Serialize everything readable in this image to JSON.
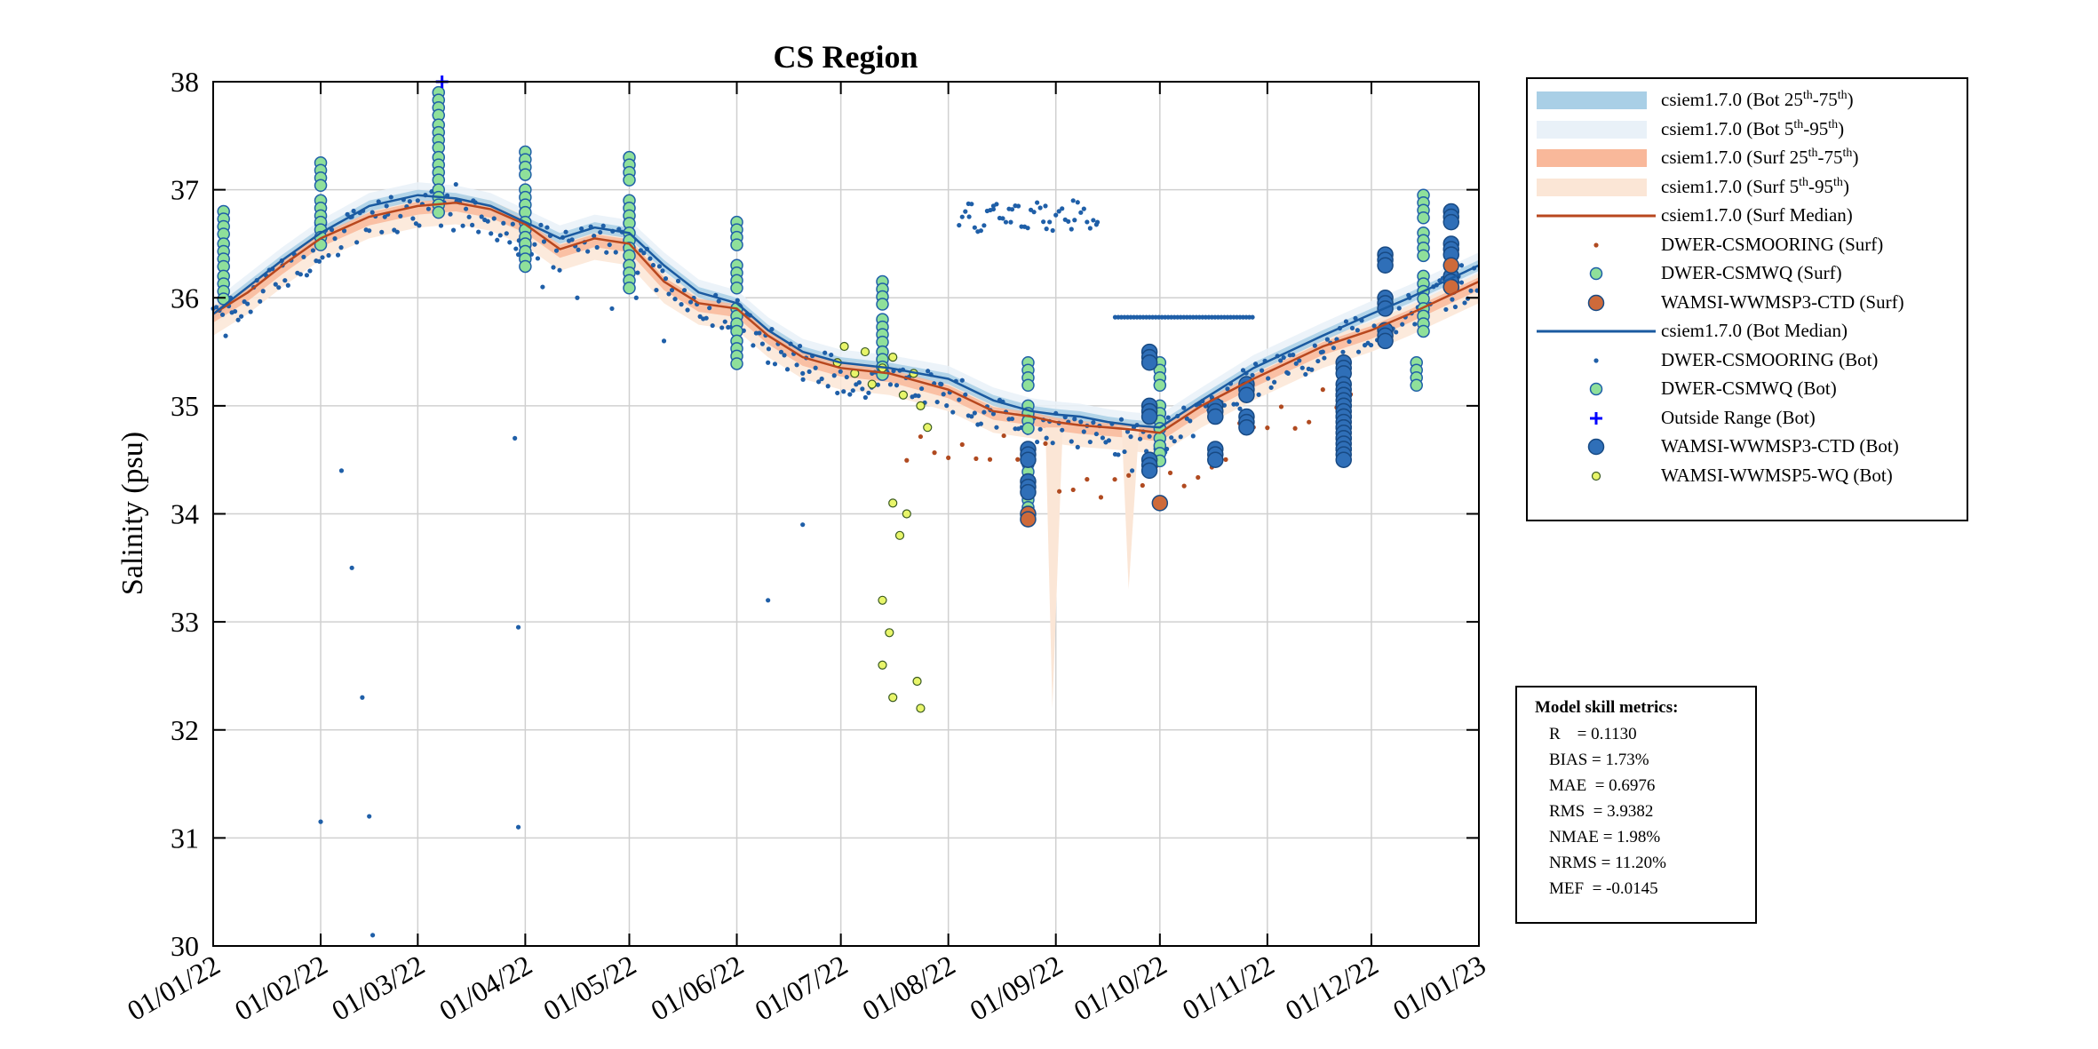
{
  "chart_data": {
    "type": "scatter",
    "title": "CS Region",
    "xlabel": "",
    "ylabel": "Salinity (psu)",
    "ylim": [
      30,
      38
    ],
    "yticks": [
      30,
      31,
      32,
      33,
      34,
      35,
      36,
      37,
      38
    ],
    "xlim_days": [
      0,
      365
    ],
    "x_tick_labels": [
      "01/01/22",
      "01/02/22",
      "01/03/22",
      "01/04/22",
      "01/05/22",
      "01/06/22",
      "01/07/22",
      "01/08/22",
      "01/09/22",
      "01/10/22",
      "01/11/22",
      "01/12/22",
      "01/01/23"
    ],
    "x_tick_days": [
      0,
      31,
      59,
      90,
      120,
      151,
      181,
      212,
      243,
      273,
      304,
      334,
      365
    ],
    "grid": true,
    "legend_position": "outside-right",
    "colors": {
      "bot_band_inner": "#a9cfe6",
      "bot_band_outer": "#e9f1f8",
      "surf_band_inner": "#f9b89a",
      "surf_band_outer": "#fbe6d6",
      "surf_median": "#b8471e",
      "bot_median": "#1a5aa0",
      "mooring_bot": "#1f5fa8",
      "mooring_surf": "#b04a20",
      "csmwq_fill": "#8fe09a",
      "csmwq_edge": "#1f5fa8",
      "ctd_bot_fill": "#2f6fb8",
      "ctd_bot_edge": "#184a84",
      "ctd_surf_fill": "#ce6a3a",
      "p5_fill": "#e8f56a",
      "p5_edge": "#3a5a20",
      "outside": "#0000ff"
    },
    "series": [
      {
        "name": "csiem1.7.0 (Surf Median)",
        "type": "line",
        "x": [
          0,
          10,
          20,
          31,
          45,
          59,
          70,
          80,
          90,
          100,
          110,
          120,
          130,
          140,
          151,
          160,
          170,
          181,
          195,
          212,
          225,
          236,
          243,
          250,
          258,
          265,
          273,
          285,
          300,
          320,
          334,
          345,
          355,
          365
        ],
        "y": [
          35.85,
          36.05,
          36.3,
          36.55,
          36.75,
          36.85,
          36.88,
          36.82,
          36.68,
          36.45,
          36.55,
          36.5,
          36.15,
          35.95,
          35.9,
          35.65,
          35.45,
          35.35,
          35.3,
          35.15,
          34.95,
          34.9,
          34.85,
          34.82,
          34.8,
          34.78,
          34.75,
          35.0,
          35.25,
          35.55,
          35.7,
          35.85,
          36.0,
          36.15
        ]
      },
      {
        "name": "csiem1.7.0 (Bot Median)",
        "type": "line",
        "x": [
          0,
          10,
          20,
          31,
          45,
          59,
          70,
          80,
          90,
          100,
          110,
          120,
          130,
          140,
          151,
          160,
          170,
          181,
          195,
          212,
          225,
          236,
          243,
          250,
          258,
          265,
          273,
          285,
          300,
          320,
          334,
          345,
          355,
          365
        ],
        "y": [
          35.85,
          36.1,
          36.35,
          36.6,
          36.85,
          36.95,
          36.92,
          36.85,
          36.7,
          36.55,
          36.65,
          36.6,
          36.3,
          36.05,
          35.95,
          35.7,
          35.5,
          35.4,
          35.35,
          35.25,
          35.05,
          34.95,
          34.92,
          34.9,
          34.85,
          34.82,
          34.8,
          35.05,
          35.35,
          35.65,
          35.85,
          36.0,
          36.15,
          36.3
        ]
      },
      {
        "name": "DWER-CSMWQ (Bot)",
        "type": "scatter",
        "points": [
          [
            3,
            36.8
          ],
          [
            3,
            36.5
          ],
          [
            3,
            36.2
          ],
          [
            31,
            37.25
          ],
          [
            31,
            36.9
          ],
          [
            31,
            36.7
          ],
          [
            65,
            37.9
          ],
          [
            65,
            37.6
          ],
          [
            65,
            37.3
          ],
          [
            65,
            37.0
          ],
          [
            90,
            37.35
          ],
          [
            90,
            37.0
          ],
          [
            90,
            36.7
          ],
          [
            90,
            36.5
          ],
          [
            120,
            37.3
          ],
          [
            120,
            36.9
          ],
          [
            120,
            36.6
          ],
          [
            120,
            36.3
          ],
          [
            151,
            36.7
          ],
          [
            151,
            36.3
          ],
          [
            151,
            35.9
          ],
          [
            151,
            35.6
          ],
          [
            193,
            36.15
          ],
          [
            193,
            35.8
          ],
          [
            193,
            35.5
          ],
          [
            235,
            35.4
          ],
          [
            235,
            35.0
          ],
          [
            235,
            34.6
          ],
          [
            235,
            34.2
          ],
          [
            273,
            35.4
          ],
          [
            273,
            35.0
          ],
          [
            273,
            34.7
          ],
          [
            349,
            36.95
          ],
          [
            349,
            36.6
          ],
          [
            349,
            36.2
          ],
          [
            349,
            35.9
          ],
          [
            347,
            35.4
          ]
        ]
      },
      {
        "name": "WAMSI-WWMSP3-CTD (Bot)",
        "type": "scatter",
        "points": [
          [
            235,
            34.6
          ],
          [
            235,
            34.3
          ],
          [
            270,
            35.5
          ],
          [
            270,
            35.0
          ],
          [
            270,
            34.5
          ],
          [
            289,
            35.0
          ],
          [
            289,
            34.6
          ],
          [
            298,
            35.2
          ],
          [
            298,
            34.9
          ],
          [
            326,
            35.4
          ],
          [
            326,
            35.2
          ],
          [
            326,
            35.1
          ],
          [
            326,
            35.0
          ],
          [
            326,
            34.9
          ],
          [
            326,
            34.8
          ],
          [
            326,
            34.7
          ],
          [
            326,
            34.6
          ],
          [
            338,
            36.4
          ],
          [
            338,
            36.0
          ],
          [
            338,
            35.7
          ],
          [
            357,
            36.8
          ],
          [
            357,
            36.5
          ],
          [
            357,
            36.2
          ]
        ]
      },
      {
        "name": "WAMSI-WWMSP3-CTD (Surf)",
        "type": "scatter",
        "points": [
          [
            235,
            34.0
          ],
          [
            235,
            33.95
          ],
          [
            273,
            34.1
          ],
          [
            357,
            36.3
          ],
          [
            357,
            36.1
          ]
        ]
      },
      {
        "name": "WAMSI-WWMSP5-WQ (Bot)",
        "type": "scatter",
        "points": [
          [
            180,
            35.4
          ],
          [
            182,
            35.55
          ],
          [
            185,
            35.3
          ],
          [
            188,
            35.5
          ],
          [
            190,
            35.2
          ],
          [
            193,
            35.35
          ],
          [
            196,
            35.45
          ],
          [
            199,
            35.1
          ],
          [
            202,
            35.3
          ],
          [
            204,
            35.0
          ],
          [
            206,
            34.8
          ],
          [
            196,
            34.1
          ],
          [
            198,
            33.8
          ],
          [
            200,
            34.0
          ],
          [
            193,
            33.2
          ],
          [
            195,
            32.9
          ],
          [
            193,
            32.6
          ],
          [
            196,
            32.3
          ],
          [
            203,
            32.45
          ],
          [
            204,
            32.2
          ]
        ]
      },
      {
        "name": "Outside Range (Bot)",
        "type": "scatter",
        "points": [
          [
            66,
            38.0
          ]
        ]
      },
      {
        "name": "DWER-CSMOORING (Bot)",
        "type": "scatter",
        "description": "dense mooring timeseries",
        "points": [
          [
            5,
            36.0
          ],
          [
            20,
            36.3
          ],
          [
            31,
            36.6
          ],
          [
            40,
            36.75
          ],
          [
            50,
            36.85
          ],
          [
            59,
            36.9
          ],
          [
            70,
            37.05
          ],
          [
            75,
            36.9
          ],
          [
            88,
            36.4
          ],
          [
            95,
            36.1
          ],
          [
            105,
            36.0
          ],
          [
            115,
            35.9
          ],
          [
            122,
            36.0
          ],
          [
            130,
            35.6
          ],
          [
            150,
            35.5
          ],
          [
            160,
            35.4
          ],
          [
            170,
            35.3
          ],
          [
            190,
            35.3
          ],
          [
            210,
            35.2
          ],
          [
            218,
            36.75
          ],
          [
            225,
            36.85
          ],
          [
            230,
            36.7
          ],
          [
            240,
            36.85
          ],
          [
            248,
            36.9
          ],
          [
            255,
            36.7
          ],
          [
            265,
            34.4
          ],
          [
            275,
            34.6
          ],
          [
            290,
            34.9
          ],
          [
            310,
            35.3
          ],
          [
            320,
            35.5
          ],
          [
            330,
            35.7
          ],
          [
            345,
            36.0
          ],
          [
            360,
            36.3
          ],
          [
            37,
            34.4
          ],
          [
            40,
            33.5
          ],
          [
            43,
            32.3
          ],
          [
            45,
            31.2
          ],
          [
            46,
            30.1
          ],
          [
            87,
            34.7
          ],
          [
            88,
            32.95
          ],
          [
            88,
            31.1
          ],
          [
            31,
            31.15
          ],
          [
            160,
            33.2
          ],
          [
            170,
            33.9
          ]
        ]
      }
    ]
  },
  "legend": {
    "items": [
      {
        "symbol": "band",
        "color": "#a9cfe6",
        "label": "csiem1.7.0 (Bot 25",
        "sup1": "th",
        "mid": "-75",
        "sup2": "th",
        "end": ")"
      },
      {
        "symbol": "band",
        "color": "#e9f1f8",
        "label": "csiem1.7.0 (Bot 5",
        "sup1": "th",
        "mid": "-95",
        "sup2": "th",
        "end": ")"
      },
      {
        "symbol": "band",
        "color": "#f9b89a",
        "label": "csiem1.7.0 (Surf 25",
        "sup1": "th",
        "mid": "-75",
        "sup2": "th",
        "end": ")"
      },
      {
        "symbol": "band",
        "color": "#fbe6d6",
        "label": "csiem1.7.0 (Surf 5",
        "sup1": "th",
        "mid": "-95",
        "sup2": "th",
        "end": ")"
      },
      {
        "symbol": "line",
        "color": "#b8471e",
        "label": "csiem1.7.0 (Surf Median)"
      },
      {
        "symbol": "dot",
        "color": "#b04a20",
        "label": "DWER-CSMOORING (Surf)"
      },
      {
        "symbol": "circle",
        "color": "#8fe09a",
        "label": "DWER-CSMWQ (Surf)"
      },
      {
        "symbol": "bigcircle-surf",
        "color": "#ce6a3a",
        "label": "WAMSI-WWMSP3-CTD (Surf)"
      },
      {
        "symbol": "line",
        "color": "#1a5aa0",
        "label": "csiem1.7.0 (Bot Median)"
      },
      {
        "symbol": "dot",
        "color": "#1f5fa8",
        "label": "DWER-CSMOORING (Bot)"
      },
      {
        "symbol": "circle",
        "color": "#8fe09a",
        "label": "DWER-CSMWQ (Bot)"
      },
      {
        "symbol": "plus",
        "color": "#0000ff",
        "label": "Outside Range (Bot)"
      },
      {
        "symbol": "bigcircle-bot",
        "color": "#2f6fb8",
        "label": "WAMSI-WWMSP3-CTD (Bot)"
      },
      {
        "symbol": "smallcircle",
        "color": "#e8f56a",
        "label": "WAMSI-WWMSP5-WQ (Bot)"
      }
    ]
  },
  "metrics": {
    "title": "Model skill metrics:",
    "lines": [
      "R    = 0.1130",
      "BIAS = 1.73%",
      "MAE  = 0.6976",
      "RMS  = 3.9382",
      "NMAE = 1.98%",
      "NRMS = 11.20%",
      "MEF  = -0.0145"
    ]
  }
}
